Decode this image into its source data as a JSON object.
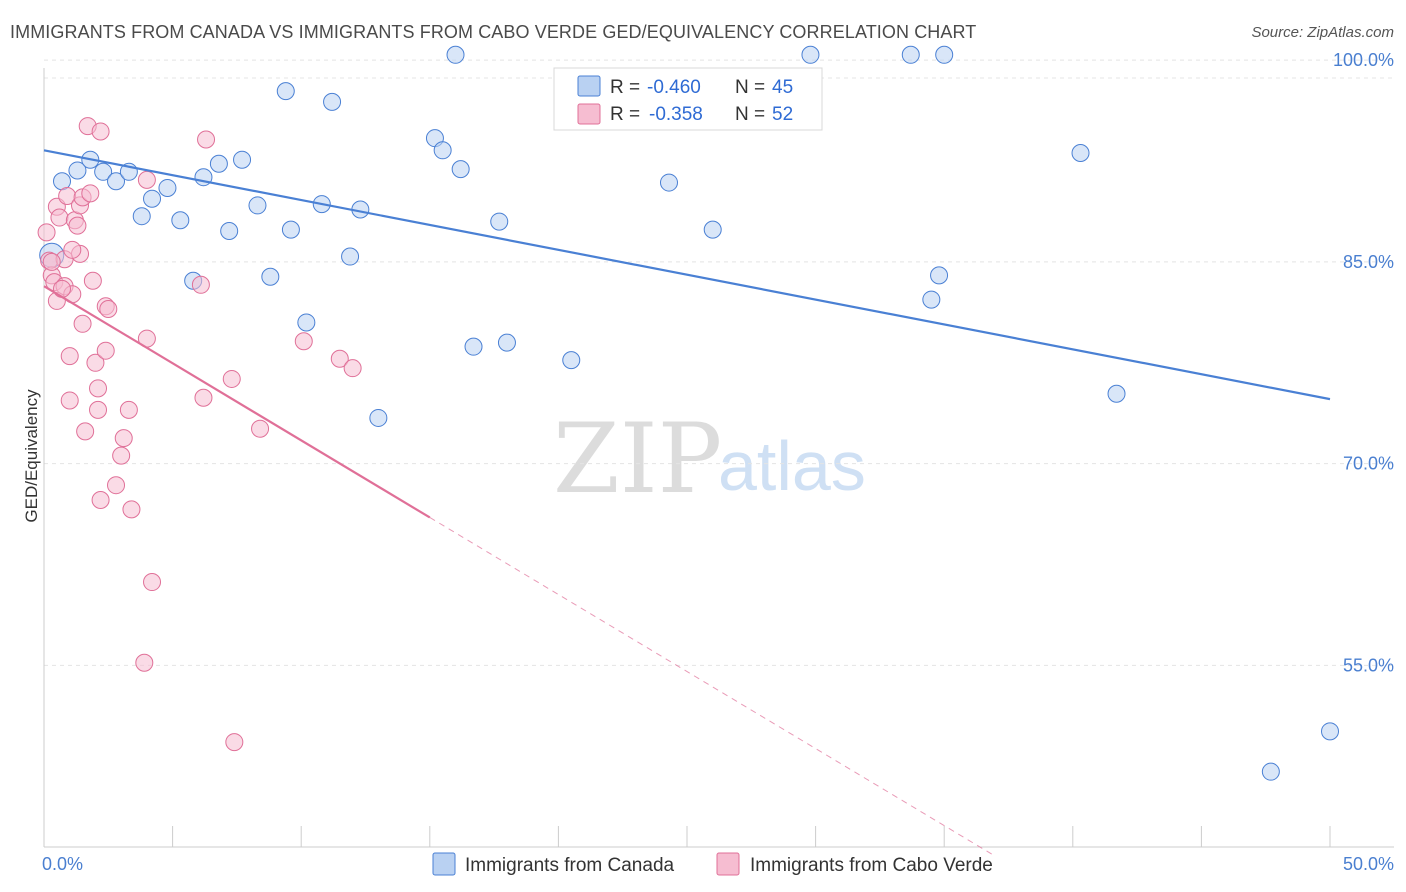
{
  "title": "IMMIGRANTS FROM CANADA VS IMMIGRANTS FROM CABO VERDE GED/EQUIVALENCY CORRELATION CHART",
  "source": "Source: ZipAtlas.com",
  "watermark": {
    "zip": "ZIP",
    "atlas": "atlas"
  },
  "colors": {
    "canada": "#4a80d4",
    "canada_fill": "#b9d1f2",
    "cabo": "#e07098",
    "cabo_fill": "#f6bdd1"
  },
  "legend": {
    "rows": [
      {
        "r_label": "R =",
        "r_value": "-0.460",
        "n_label": "N =",
        "n_value": "45"
      },
      {
        "r_label": "R =",
        "r_value": "-0.358",
        "n_label": "N =",
        "n_value": "52"
      }
    ]
  },
  "chart_data": {
    "type": "scatter",
    "title": "IMMIGRANTS FROM CANADA VS IMMIGRANTS FROM CABO VERDE GED/EQUIVALENCY CORRELATION CHART",
    "xlabel": "",
    "ylabel": "GED/Equivalency",
    "xlim": [
      0,
      50
    ],
    "ylim": [
      41.5,
      101.5
    ],
    "x_tick_labels": [
      "0.0%",
      "50.0%"
    ],
    "y_ticks": [
      55,
      70,
      85,
      100
    ],
    "y_tick_labels": [
      "55.0%",
      "70.0%",
      "85.0%",
      "100.0%"
    ],
    "grid": true,
    "legend_position": "top-center",
    "series": [
      {
        "name": "Immigrants from Canada",
        "color": "#4a80d4",
        "trend": {
          "x": [
            0,
            50
          ],
          "y": [
            93.3,
            74.8
          ]
        },
        "points": [
          {
            "x": 0.3,
            "y": 85.5,
            "r": 12
          },
          {
            "x": 0.7,
            "y": 91.0
          },
          {
            "x": 1.3,
            "y": 91.8
          },
          {
            "x": 1.8,
            "y": 92.6
          },
          {
            "x": 2.3,
            "y": 91.7
          },
          {
            "x": 2.8,
            "y": 91.0
          },
          {
            "x": 3.3,
            "y": 91.7
          },
          {
            "x": 3.8,
            "y": 88.4
          },
          {
            "x": 4.2,
            "y": 89.7
          },
          {
            "x": 4.8,
            "y": 90.5
          },
          {
            "x": 5.3,
            "y": 88.1
          },
          {
            "x": 5.8,
            "y": 83.6
          },
          {
            "x": 6.2,
            "y": 91.3
          },
          {
            "x": 6.8,
            "y": 92.3
          },
          {
            "x": 7.2,
            "y": 87.3
          },
          {
            "x": 7.7,
            "y": 92.6
          },
          {
            "x": 8.3,
            "y": 89.2
          },
          {
            "x": 8.8,
            "y": 83.9
          },
          {
            "x": 9.4,
            "y": 97.7
          },
          {
            "x": 9.6,
            "y": 87.4
          },
          {
            "x": 10.2,
            "y": 80.5
          },
          {
            "x": 10.8,
            "y": 89.3
          },
          {
            "x": 11.2,
            "y": 96.9
          },
          {
            "x": 11.9,
            "y": 85.4
          },
          {
            "x": 12.3,
            "y": 88.9
          },
          {
            "x": 13.0,
            "y": 73.4
          },
          {
            "x": 15.2,
            "y": 94.2
          },
          {
            "x": 15.5,
            "y": 93.3
          },
          {
            "x": 16.0,
            "y": 100.4
          },
          {
            "x": 16.2,
            "y": 91.9
          },
          {
            "x": 16.7,
            "y": 78.7
          },
          {
            "x": 17.7,
            "y": 88.0
          },
          {
            "x": 18.0,
            "y": 79.0
          },
          {
            "x": 20.5,
            "y": 77.7
          },
          {
            "x": 24.3,
            "y": 90.9
          },
          {
            "x": 26.0,
            "y": 87.4
          },
          {
            "x": 29.8,
            "y": 100.4
          },
          {
            "x": 33.7,
            "y": 100.4
          },
          {
            "x": 35.0,
            "y": 100.4
          },
          {
            "x": 34.5,
            "y": 82.2
          },
          {
            "x": 34.8,
            "y": 84.0
          },
          {
            "x": 40.3,
            "y": 93.1
          },
          {
            "x": 41.7,
            "y": 75.2
          },
          {
            "x": 50.0,
            "y": 50.1
          },
          {
            "x": 47.7,
            "y": 47.1
          }
        ]
      },
      {
        "name": "Immigrants from Cabo Verde",
        "color": "#e07098",
        "trend": {
          "x": [
            0,
            15.0
          ],
          "y": [
            83.2,
            66.0
          ]
        },
        "trend_extension": {
          "x": [
            15.0,
            37.0
          ],
          "y": [
            66.0,
            40.8
          ]
        },
        "points": [
          {
            "x": 0.1,
            "y": 87.2
          },
          {
            "x": 0.2,
            "y": 85.1
          },
          {
            "x": 0.3,
            "y": 84.0
          },
          {
            "x": 0.4,
            "y": 83.5
          },
          {
            "x": 0.5,
            "y": 82.1
          },
          {
            "x": 0.5,
            "y": 89.1
          },
          {
            "x": 0.6,
            "y": 88.3
          },
          {
            "x": 0.8,
            "y": 85.2
          },
          {
            "x": 0.8,
            "y": 83.2
          },
          {
            "x": 0.9,
            "y": 89.9
          },
          {
            "x": 1.0,
            "y": 74.7
          },
          {
            "x": 1.0,
            "y": 78.0
          },
          {
            "x": 1.1,
            "y": 82.6
          },
          {
            "x": 1.2,
            "y": 88.1
          },
          {
            "x": 1.3,
            "y": 87.7
          },
          {
            "x": 1.4,
            "y": 89.2
          },
          {
            "x": 1.5,
            "y": 89.8
          },
          {
            "x": 1.4,
            "y": 85.6
          },
          {
            "x": 1.5,
            "y": 80.4
          },
          {
            "x": 1.6,
            "y": 72.4
          },
          {
            "x": 1.7,
            "y": 95.1
          },
          {
            "x": 1.8,
            "y": 90.1
          },
          {
            "x": 1.9,
            "y": 83.6
          },
          {
            "x": 2.0,
            "y": 77.5
          },
          {
            "x": 2.1,
            "y": 75.6
          },
          {
            "x": 2.1,
            "y": 74.0
          },
          {
            "x": 2.2,
            "y": 67.3
          },
          {
            "x": 2.2,
            "y": 94.7
          },
          {
            "x": 2.4,
            "y": 78.4
          },
          {
            "x": 2.4,
            "y": 81.7
          },
          {
            "x": 2.5,
            "y": 81.5
          },
          {
            "x": 2.8,
            "y": 68.4
          },
          {
            "x": 3.0,
            "y": 70.6
          },
          {
            "x": 3.1,
            "y": 71.9
          },
          {
            "x": 3.3,
            "y": 74.0
          },
          {
            "x": 3.4,
            "y": 66.6
          },
          {
            "x": 3.9,
            "y": 55.2
          },
          {
            "x": 4.0,
            "y": 79.3
          },
          {
            "x": 4.2,
            "y": 61.2
          },
          {
            "x": 4.0,
            "y": 91.1
          },
          {
            "x": 6.1,
            "y": 83.3
          },
          {
            "x": 6.3,
            "y": 94.1
          },
          {
            "x": 6.2,
            "y": 74.9
          },
          {
            "x": 7.3,
            "y": 76.3
          },
          {
            "x": 7.4,
            "y": 49.3
          },
          {
            "x": 8.4,
            "y": 72.6
          },
          {
            "x": 10.1,
            "y": 79.1
          },
          {
            "x": 11.5,
            "y": 77.8
          },
          {
            "x": 12.0,
            "y": 77.1
          },
          {
            "x": 0.3,
            "y": 85.0
          },
          {
            "x": 0.7,
            "y": 83.0
          },
          {
            "x": 1.1,
            "y": 85.9
          }
        ]
      }
    ]
  }
}
